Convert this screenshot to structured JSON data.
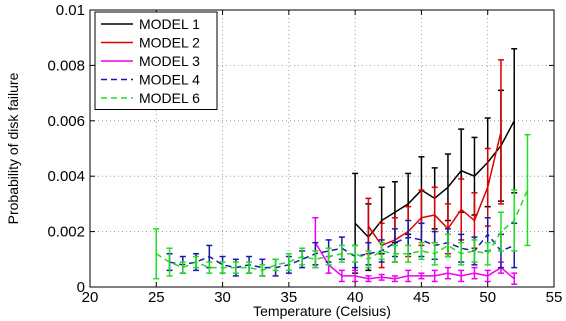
{
  "chart_data": {
    "type": "line",
    "xlabel": "Temperature (Celsius)",
    "ylabel": "Probability of disk failure",
    "xlim": [
      20,
      55
    ],
    "ylim": [
      0,
      0.01
    ],
    "xticks": [
      20,
      25,
      30,
      35,
      40,
      45,
      50,
      55
    ],
    "xtick_labels": [
      "20",
      "25",
      "30",
      "35",
      "40",
      "45",
      "50",
      "55"
    ],
    "yticks": [
      0,
      0.002,
      0.004,
      0.006,
      0.008,
      0.01
    ],
    "ytick_labels": [
      "0",
      "0.002",
      "0.004",
      "0.006",
      "0.008",
      "0.01"
    ],
    "grid": true,
    "legend_position": "top-left",
    "series": [
      {
        "name": "MODEL 1",
        "color": "#000000",
        "dash": "solid",
        "x": [
          40,
          41,
          42,
          43,
          44,
          45,
          46,
          47,
          48,
          49,
          50,
          51,
          52
        ],
        "y": [
          0.0023,
          0.0018,
          0.0024,
          0.0027,
          0.003,
          0.0035,
          0.0032,
          0.0036,
          0.0042,
          0.004,
          0.0045,
          0.0051,
          0.006
        ],
        "err": [
          0.0018,
          0.0012,
          0.0012,
          0.0011,
          0.0011,
          0.0012,
          0.0011,
          0.0012,
          0.0015,
          0.0014,
          0.0016,
          0.002,
          0.0026
        ]
      },
      {
        "name": "MODEL 2",
        "color": "#dd0000",
        "dash": "solid",
        "x": [
          41,
          42,
          43,
          44,
          45,
          46,
          47,
          48,
          49,
          50,
          51
        ],
        "y": [
          0.0022,
          0.0015,
          0.0017,
          0.002,
          0.0025,
          0.0026,
          0.0021,
          0.0028,
          0.0024,
          0.0036,
          0.0056
        ],
        "err": [
          0.001,
          0.0008,
          0.0008,
          0.0009,
          0.001,
          0.001,
          0.0009,
          0.0011,
          0.001,
          0.0014,
          0.0026
        ]
      },
      {
        "name": "MODEL 3",
        "color": "#ee00ee",
        "dash": "solid",
        "x": [
          37,
          38,
          39,
          40,
          41,
          42,
          43,
          44,
          45,
          46,
          47,
          48,
          49,
          50,
          51,
          52
        ],
        "y": [
          0.0016,
          0.0008,
          0.0004,
          0.0004,
          0.0003,
          0.00035,
          0.0003,
          0.0004,
          0.0004,
          0.0004,
          0.0005,
          0.0004,
          0.0005,
          0.0004,
          0.0007,
          0.0003
        ],
        "err": [
          0.0009,
          0.0003,
          0.0002,
          0.0002,
          0.0001,
          0.0001,
          0.0001,
          0.0002,
          0.0001,
          0.0002,
          0.0002,
          0.0002,
          0.0002,
          0.0002,
          0.0002,
          0.0002
        ]
      },
      {
        "name": "MODEL 4",
        "color": "#1a1aaa",
        "dash": "6,4",
        "x": [
          26,
          27,
          28,
          29,
          30,
          31,
          32,
          33,
          34,
          35,
          36,
          37,
          38,
          39,
          40,
          41,
          42,
          43,
          44,
          45,
          46,
          47,
          48,
          49,
          50,
          51,
          52
        ],
        "y": [
          0.0009,
          0.0008,
          0.0009,
          0.0011,
          0.0008,
          0.0007,
          0.0008,
          0.0007,
          0.0007,
          0.0008,
          0.001,
          0.0012,
          0.0013,
          0.0014,
          0.0011,
          0.0012,
          0.0013,
          0.0016,
          0.0018,
          0.0017,
          0.0015,
          0.0016,
          0.0014,
          0.0013,
          0.0019,
          0.0013,
          0.0015
        ],
        "err": [
          0.0003,
          0.0003,
          0.0003,
          0.0004,
          0.0003,
          0.0003,
          0.0003,
          0.0003,
          0.0003,
          0.0003,
          0.0003,
          0.0004,
          0.0004,
          0.0004,
          0.0004,
          0.0004,
          0.0004,
          0.0005,
          0.0006,
          0.0006,
          0.0005,
          0.0005,
          0.0005,
          0.0005,
          0.0006,
          0.0006,
          0.0008
        ]
      },
      {
        "name": "MODEL 6",
        "color": "#22dd22",
        "dash": "6,4",
        "x": [
          25,
          26,
          27,
          28,
          29,
          30,
          31,
          32,
          33,
          34,
          35,
          36,
          37,
          38,
          39,
          40,
          41,
          42,
          43,
          44,
          45,
          46,
          47,
          48,
          49,
          50,
          51,
          52,
          53
        ],
        "y": [
          0.0012,
          0.0009,
          0.0007,
          0.0009,
          0.0007,
          0.0007,
          0.0007,
          0.0007,
          0.0006,
          0.0008,
          0.0009,
          0.0011,
          0.001,
          0.0011,
          0.0012,
          0.0012,
          0.001,
          0.0013,
          0.0012,
          0.0012,
          0.0013,
          0.0012,
          0.0015,
          0.0012,
          0.0013,
          0.0012,
          0.002,
          0.0024,
          0.0035
        ],
        "err": [
          0.0009,
          0.0005,
          0.0002,
          0.0002,
          0.0002,
          0.0002,
          0.0002,
          0.0002,
          0.0002,
          0.0002,
          0.0003,
          0.0003,
          0.0003,
          0.0003,
          0.0003,
          0.0003,
          0.0003,
          0.0003,
          0.0003,
          0.0003,
          0.0003,
          0.0004,
          0.0004,
          0.0004,
          0.0004,
          0.0004,
          0.0007,
          0.0011,
          0.002
        ]
      }
    ]
  }
}
